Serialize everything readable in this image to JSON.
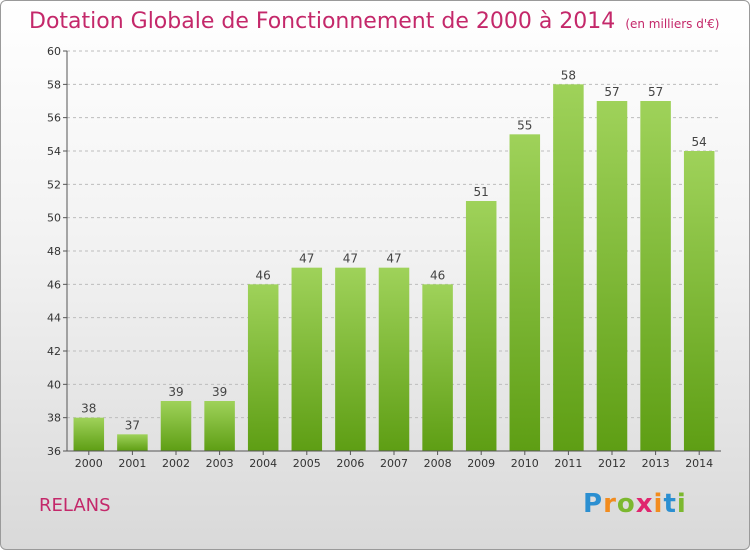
{
  "title": "Dotation Globale de Fonctionnement de 2000 à 2014",
  "unit": "(en milliers d'€)",
  "place": "RELANS",
  "logo": {
    "text": "Proxiti",
    "letters": [
      {
        "ch": "P",
        "color": "#2b8fd1"
      },
      {
        "ch": "r",
        "color": "#f28c1e"
      },
      {
        "ch": "o",
        "color": "#7cb82f"
      },
      {
        "ch": "x",
        "color": "#e0266e"
      },
      {
        "ch": "i",
        "color": "#f28c1e"
      },
      {
        "ch": "t",
        "color": "#2b8fd1"
      },
      {
        "ch": "i",
        "color": "#7cb82f"
      }
    ]
  },
  "colors": {
    "title": "#c4286a",
    "bar_top": "#9fd25a",
    "bar_bottom": "#5e9e14",
    "grid": "#bdbdbd",
    "axis": "#555555"
  },
  "chart_data": {
    "type": "bar",
    "categories": [
      "2000",
      "2001",
      "2002",
      "2003",
      "2004",
      "2005",
      "2006",
      "2007",
      "2008",
      "2009",
      "2010",
      "2011",
      "2012",
      "2013",
      "2014"
    ],
    "values": [
      38,
      37,
      39,
      39,
      46,
      47,
      47,
      47,
      46,
      51,
      55,
      58,
      57,
      57,
      54
    ],
    "ylim": [
      36,
      60
    ],
    "yticks": [
      36,
      38,
      40,
      42,
      44,
      46,
      48,
      50,
      52,
      54,
      56,
      58,
      60
    ],
    "grid": true,
    "grid_style": "dashed",
    "data_labels": true
  }
}
